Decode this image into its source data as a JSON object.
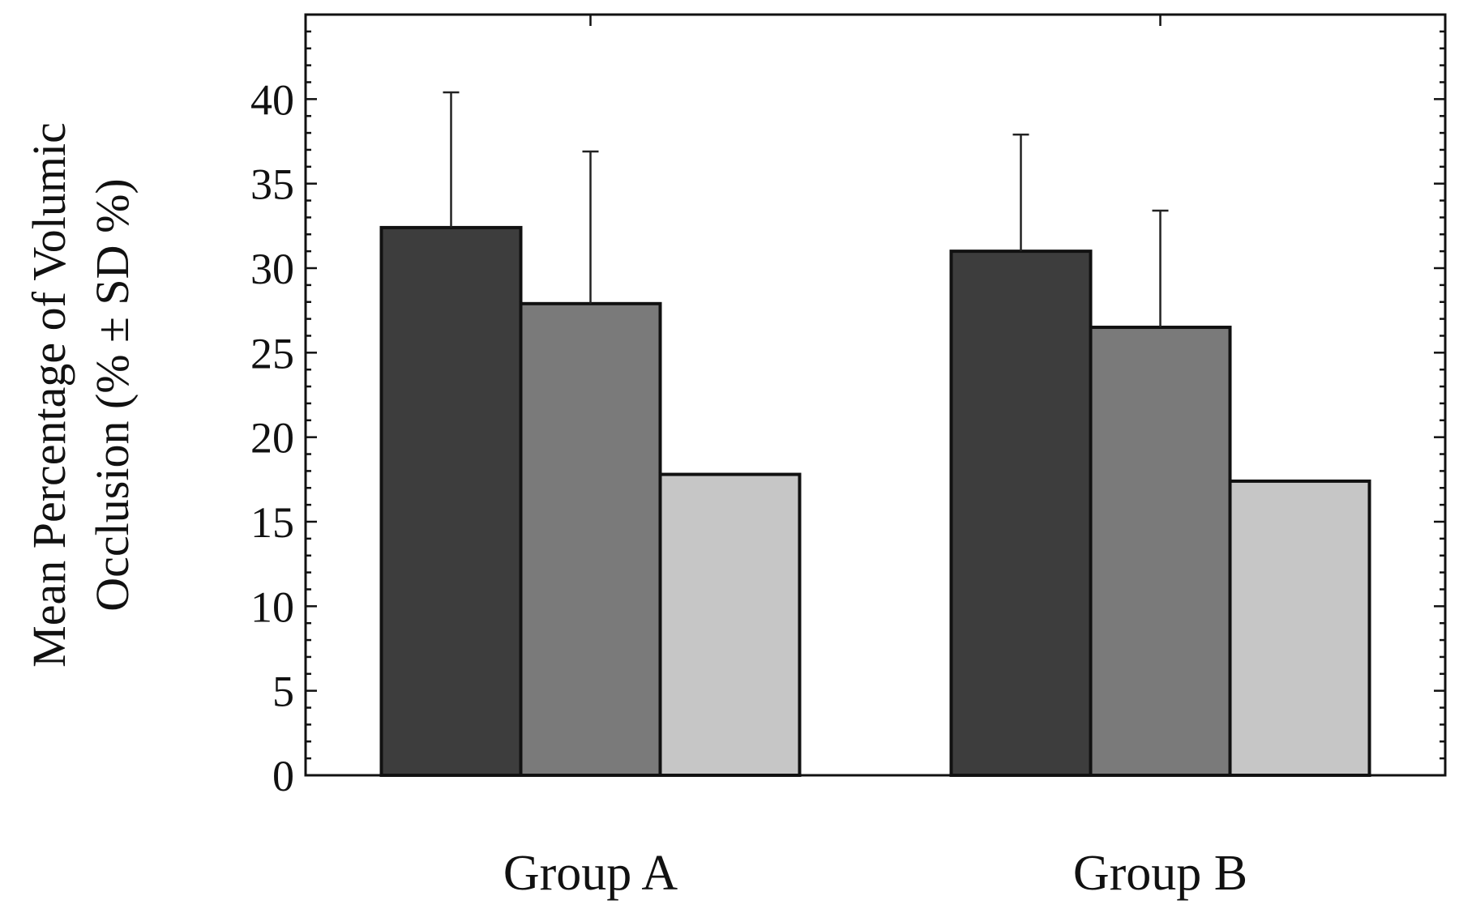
{
  "chart_data": {
    "type": "bar",
    "title": "",
    "xlabel": "",
    "ylabel_lines": [
      "Mean Percentage of Volumic",
      "Occlusion (% ± SD %)"
    ],
    "categories": [
      "Group A",
      "Group B"
    ],
    "ylim": [
      0,
      45
    ],
    "yticks": [
      0,
      5,
      10,
      15,
      20,
      25,
      30,
      35,
      40
    ],
    "grid": false,
    "legend": "none",
    "series": [
      {
        "values": [
          32.4,
          31.0
        ],
        "errors": [
          8.0,
          6.9
        ],
        "color": "#3d3d3d"
      },
      {
        "values": [
          27.9,
          26.5
        ],
        "errors": [
          9.0,
          6.9
        ],
        "color": "#7a7a7a"
      },
      {
        "values": [
          17.8,
          17.4
        ],
        "errors": [
          0,
          0
        ],
        "color": "#c6c6c6"
      }
    ]
  }
}
